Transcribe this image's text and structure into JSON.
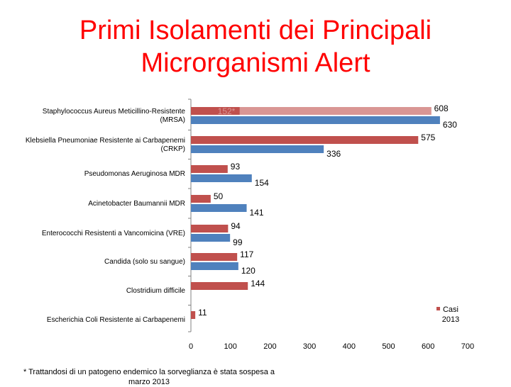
{
  "title_lines": [
    "Primi Isolamenti dei Principali",
    "Microrganismi Alert"
  ],
  "footnote": "* Trattandosi di un patogeno endemico la sorveglianza è stata sospesa a marzo 2013",
  "colors": {
    "title": "#ff0000",
    "series_2013": "#c0504d",
    "series_2013_highlight": "#d99694",
    "series_other": "#4f81bd"
  },
  "chart_data": {
    "type": "bar",
    "orientation": "horizontal",
    "title": "Primi Isolamenti dei Principali Microrganismi Alert",
    "xlim": [
      0,
      700
    ],
    "x_ticks": [
      0,
      100,
      200,
      300,
      400,
      500,
      600,
      700
    ],
    "grid": false,
    "legend_position": "right",
    "categories": [
      "Staphylococcus Aureus Meticillino-Resistente (MRSA)",
      "Klebsiella Pneumoniae Resistente ai Carbapenemi (CRKP)",
      "Pseudomonas Aeruginosa MDR",
      "Acinetobacter Baumannii MDR",
      "Enterococchi Resistenti a Vancomicina (VRE)",
      "Candida (solo su sangue)",
      "Clostridium difficile",
      "Escherichia Coli Resistente ai Carbapenemi"
    ],
    "category_label_lines": [
      [
        "Staphylococcus Aureus Meticillino-Resistente",
        "(MRSA)"
      ],
      [
        "Klebsiella Pneumoniae Resistente ai Carbapenemi",
        "(CRKP)"
      ],
      [
        "Pseudomonas Aeruginosa MDR"
      ],
      [
        "Acinetobacter Baumannii MDR"
      ],
      [
        "Enterococchi Resistenti a Vancomicina (VRE)"
      ],
      [
        "Candida (solo su sangue)"
      ],
      [
        "Clostridium difficile"
      ],
      [
        "Escherichia Coli Resistente ai Carbapenemi"
      ]
    ],
    "series": [
      {
        "name": "Casi 2013",
        "values": [
          608,
          575,
          93,
          50,
          94,
          117,
          144,
          11
        ],
        "labels": [
          "608",
          "575",
          "93",
          "50",
          "94",
          "117",
          "144",
          "11"
        ],
        "overlay": {
          "category_index": 0,
          "value": 152,
          "label": "152*"
        }
      },
      {
        "name": "",
        "values": [
          630,
          336,
          154,
          141,
          99,
          120,
          null,
          null
        ],
        "labels": [
          "630",
          "336",
          "154",
          "141",
          "99",
          "120",
          "",
          ""
        ]
      }
    ],
    "legend_lines": [
      "Casi",
      "2013"
    ]
  }
}
